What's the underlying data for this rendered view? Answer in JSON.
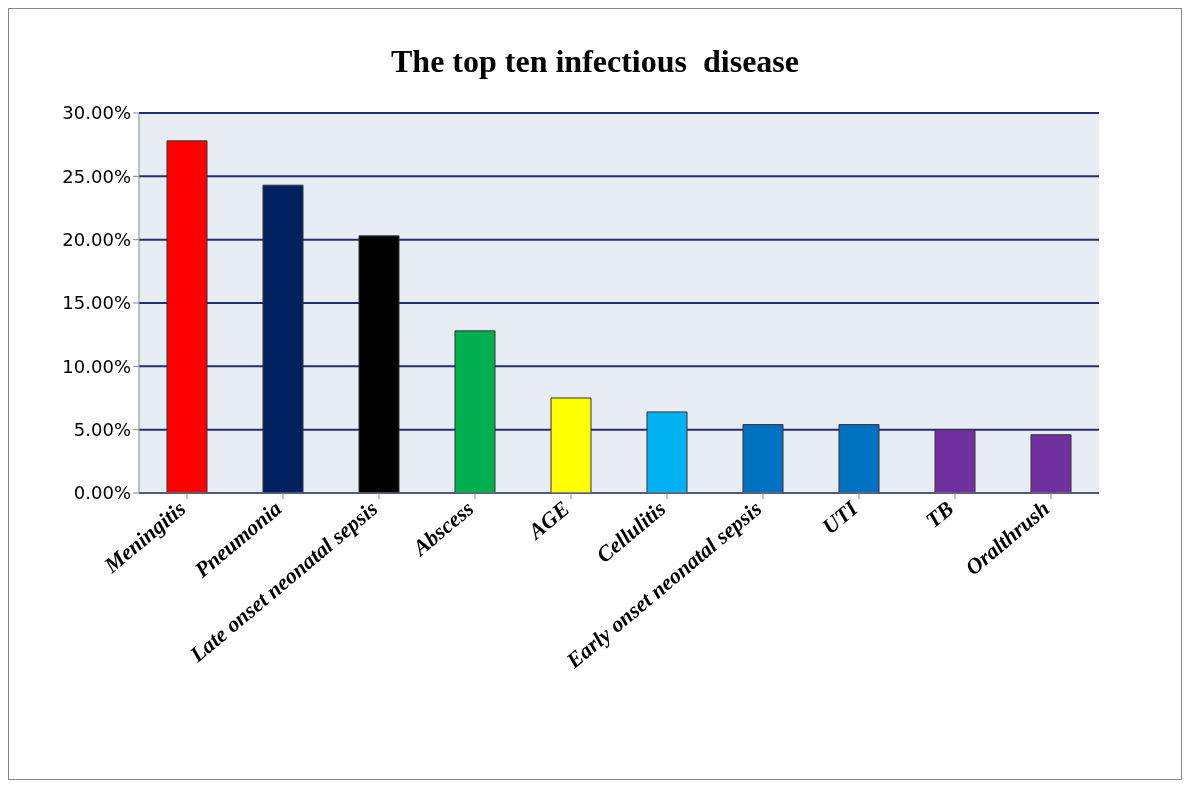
{
  "chart_data": {
    "type": "bar",
    "title": "The top ten infectious  disease",
    "categories": [
      "Meningitis",
      "Pneumonia",
      "Late onset neonatal sepsis",
      "Abscess",
      "AGE",
      "Cellulitis",
      "Early onset neonatal sepsis",
      "UTI",
      "TB",
      "Oralthrush"
    ],
    "values": [
      27.8,
      24.3,
      20.3,
      12.8,
      7.5,
      6.4,
      5.4,
      5.4,
      5.0,
      4.6
    ],
    "colors": [
      "#ff0000",
      "#002060",
      "#000000",
      "#00b050",
      "#ffff00",
      "#00b0f0",
      "#0070c0",
      "#0070c0",
      "#7030a0",
      "#7030a0"
    ],
    "ylim": [
      0,
      30
    ],
    "yticks": [
      {
        "value": 0,
        "label": "0.00%"
      },
      {
        "value": 5,
        "label": "5.00%"
      },
      {
        "value": 10,
        "label": "10.00%"
      },
      {
        "value": 15,
        "label": "15.00%"
      },
      {
        "value": 20,
        "label": "20.00%"
      },
      {
        "value": 25,
        "label": "25.00%"
      },
      {
        "value": 30,
        "label": "30.00%"
      }
    ],
    "grid": "y"
  }
}
